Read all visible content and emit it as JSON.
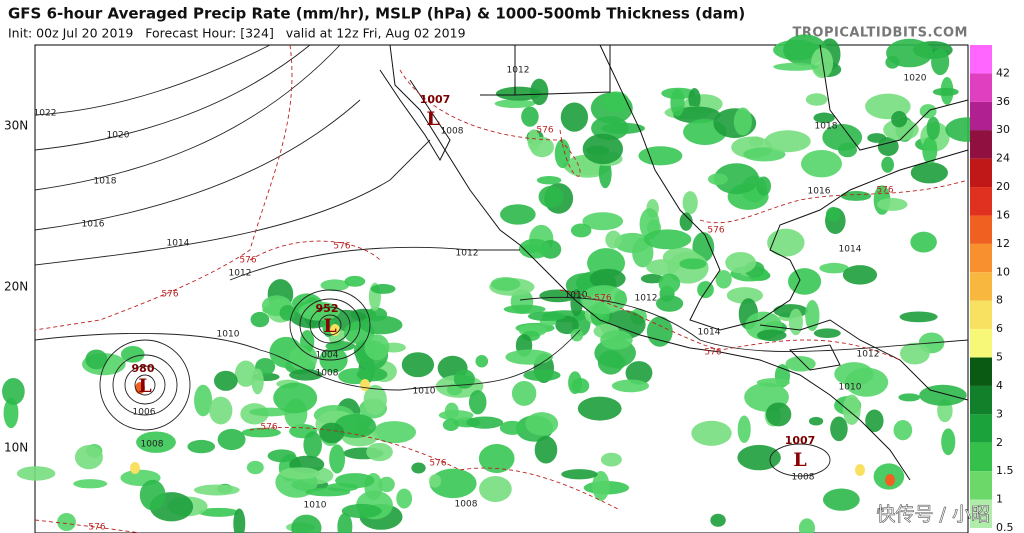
{
  "header": {
    "title": "GFS 6-hour Averaged Precip Rate (mm/hr), MSLP (hPa) & 1000-500mb Thickness (dam)",
    "subtitle": "Init: 00z Jul 20 2019   Forecast Hour: [324]   valid at 12z Fri, Aug 02 2019",
    "site": "TROPICALTIDBITS.COM"
  },
  "map": {
    "latitudes": [
      "30N",
      "20N",
      "10N"
    ],
    "lows": [
      {
        "symbol": "L",
        "pressure": "1007"
      },
      {
        "symbol": "L",
        "pressure": "952"
      },
      {
        "symbol": "L",
        "pressure": "980"
      },
      {
        "symbol": "L",
        "pressure": "1007"
      }
    ],
    "isobar_labels": [
      "1012",
      "1022",
      "1020",
      "1018",
      "1016",
      "1014",
      "1012",
      "1010",
      "1012",
      "1008",
      "1004",
      "1008",
      "1006",
      "1008",
      "1010",
      "1008",
      "1010",
      "1010",
      "1012",
      "1014",
      "1016",
      "1014",
      "1012",
      "1010",
      "1008",
      "1020",
      "1018"
    ],
    "thickness_labels": [
      "576",
      "576",
      "576",
      "576",
      "576",
      "576",
      "576",
      "576",
      "576",
      "576",
      "576"
    ]
  },
  "colorbar": {
    "labels": [
      "42",
      "36",
      "30",
      "24",
      "20",
      "16",
      "12",
      "10",
      "8",
      "6",
      "5",
      "4",
      "3",
      "2",
      "1.5",
      "1",
      "0.5"
    ],
    "colors": [
      "#ff66ff",
      "#e040c0",
      "#b02090",
      "#901040",
      "#c01818",
      "#e03020",
      "#f06020",
      "#f89030",
      "#f8b840",
      "#f8e060",
      "#f8f878",
      "#0a5a14",
      "#12802a",
      "#1ca23a",
      "#34c04a",
      "#6cd86a",
      "#b0ecaa"
    ]
  },
  "watermark": "快传号 / 小昭"
}
